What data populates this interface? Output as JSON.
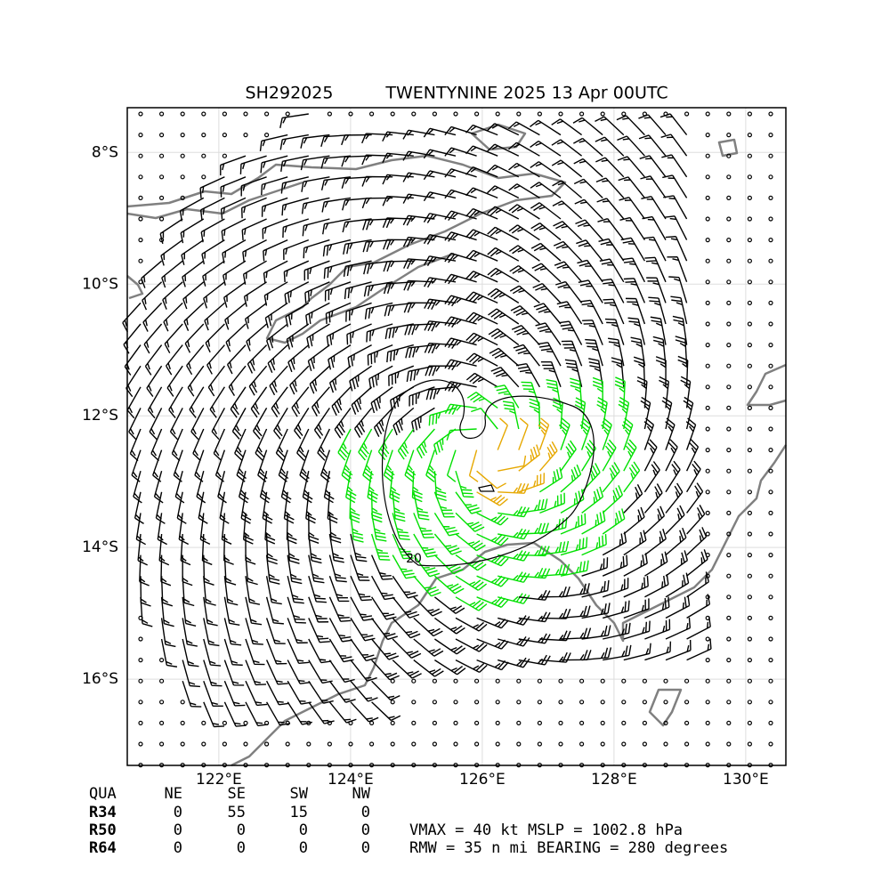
{
  "map": {
    "title_id": "SH292025",
    "title": "TWENTYNINE 2025 13 Apr 00UTC",
    "xlim": [
      120.61,
      130.61
    ],
    "ylim": [
      -17.31,
      -7.32
    ],
    "xticks": [
      {
        "value": 122,
        "label": "122°E"
      },
      {
        "value": 124,
        "label": "124°E"
      },
      {
        "value": 126,
        "label": "126°E"
      },
      {
        "value": 128,
        "label": "128°E"
      },
      {
        "value": 130,
        "label": "130°E"
      }
    ],
    "yticks": [
      {
        "value": -8,
        "label": "8°S"
      },
      {
        "value": -10,
        "label": "10°S"
      },
      {
        "value": -12,
        "label": "12°S"
      },
      {
        "value": -14,
        "label": "14°S"
      },
      {
        "value": -16,
        "label": "16°S"
      }
    ],
    "contour_label": "20",
    "table": {
      "header": [
        "QUA",
        "NE",
        "SE",
        "SW",
        "NW"
      ],
      "rows": [
        [
          "R34",
          "0",
          "55",
          "15",
          "0"
        ],
        [
          "R50",
          "0",
          "0",
          "0",
          "0"
        ],
        [
          "R64",
          "0",
          "0",
          "0",
          "0"
        ]
      ]
    },
    "info": [
      "VMAX =  40 kt MSLP = 1002.8 hPa",
      "RMW =  35 n mi BEARING = 280 degrees"
    ]
  }
}
